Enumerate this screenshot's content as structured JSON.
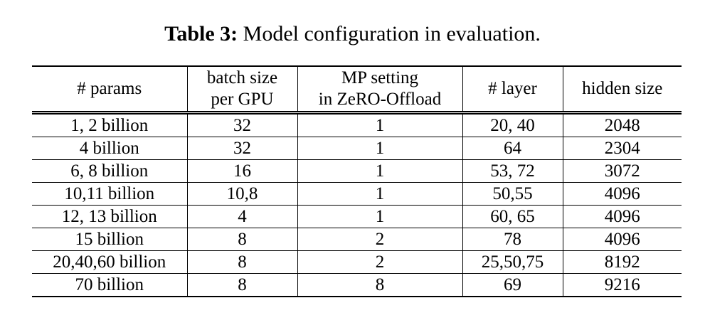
{
  "caption": {
    "label": "Table 3:",
    "text": "Model configuration in evaluation."
  },
  "table": {
    "headers": [
      [
        "# params"
      ],
      [
        "batch size",
        "per GPU"
      ],
      [
        "MP setting",
        "in ZeRO-Offload"
      ],
      [
        "# layer"
      ],
      [
        "hidden size"
      ]
    ],
    "rows": [
      [
        "1, 2 billion",
        "32",
        "1",
        "20, 40",
        "2048"
      ],
      [
        "4 billion",
        "32",
        "1",
        "64",
        "2304"
      ],
      [
        "6, 8 billion",
        "16",
        "1",
        "53, 72",
        "3072"
      ],
      [
        "10,11 billion",
        "10,8",
        "1",
        "50,55",
        "4096"
      ],
      [
        "12, 13 billion",
        "4",
        "1",
        "60, 65",
        "4096"
      ],
      [
        "15 billion",
        "8",
        "2",
        "78",
        "4096"
      ],
      [
        "20,40,60 billion",
        "8",
        "2",
        "25,50,75",
        "8192"
      ],
      [
        "70 billion",
        "8",
        "8",
        "69",
        "9216"
      ]
    ]
  }
}
